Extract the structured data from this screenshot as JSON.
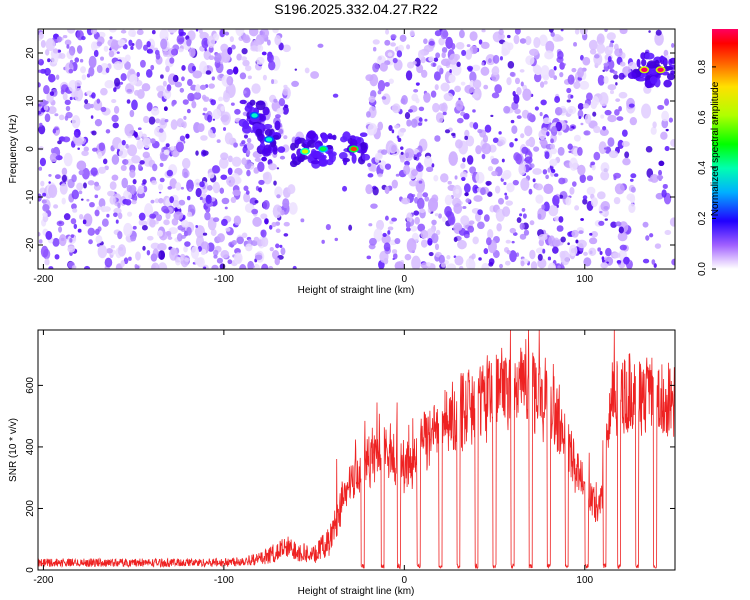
{
  "page_title": "S196.2025.332.04.27.R22",
  "chart_data": [
    {
      "type": "heatmap",
      "name": "spectrogram",
      "xlabel": "Height of straight line (km)",
      "ylabel": "Frequency (Hz)",
      "xlim": [
        -203,
        150
      ],
      "ylim": [
        -25,
        25
      ],
      "x_ticks": [
        -200,
        -100,
        0,
        100
      ],
      "y_ticks": [
        -20,
        -10,
        0,
        10,
        20
      ],
      "x_tick_labels": [
        "-200",
        "-100",
        "0",
        "100"
      ],
      "y_tick_labels": [
        "-20",
        "-10",
        "0",
        "10",
        "20"
      ],
      "colorbar": {
        "label": "Normalized spectral amplitude",
        "range": [
          0,
          0.95
        ],
        "ticks": [
          0.0,
          0.2,
          0.4,
          0.6,
          0.8
        ],
        "tick_labels": [
          "0.0",
          "0.2",
          "0.4",
          "0.6",
          "0.8"
        ]
      },
      "features": [
        {
          "x": -83,
          "y": 7,
          "amplitude": 0.35
        },
        {
          "x": -75,
          "y": 2,
          "amplitude": 0.35
        },
        {
          "x": -55,
          "y": -0.5,
          "amplitude": 0.55
        },
        {
          "x": -45,
          "y": 0,
          "amplitude": 0.4
        },
        {
          "x": -28,
          "y": 0,
          "amplitude": 0.75
        },
        {
          "x": 133,
          "y": 16.5,
          "amplitude": 0.95
        },
        {
          "x": 142,
          "y": 16.5,
          "amplitude": 0.95
        }
      ]
    },
    {
      "type": "line",
      "name": "snr",
      "xlabel": "Height of straight line (km)",
      "ylabel": "SNR (10 * v/v)",
      "xlim": [
        -203,
        150
      ],
      "ylim": [
        0,
        780
      ],
      "x_ticks": [
        -200,
        -100,
        0,
        100
      ],
      "y_ticks": [
        0,
        200,
        400,
        600
      ],
      "x_tick_labels": [
        "-200",
        "-100",
        "0",
        "100"
      ],
      "y_tick_labels": [
        "0",
        "200",
        "400",
        "600"
      ],
      "series_color": "#ee2222",
      "envelope": [
        {
          "x": -203,
          "snr": 30
        },
        {
          "x": -100,
          "snr": 30
        },
        {
          "x": -80,
          "snr": 45
        },
        {
          "x": -65,
          "snr": 90
        },
        {
          "x": -50,
          "snr": 60
        },
        {
          "x": -40,
          "snr": 130
        },
        {
          "x": -30,
          "snr": 280
        },
        {
          "x": -20,
          "snr": 360
        },
        {
          "x": -10,
          "snr": 380
        },
        {
          "x": 0,
          "snr": 320
        },
        {
          "x": 15,
          "snr": 430
        },
        {
          "x": 30,
          "snr": 500
        },
        {
          "x": 50,
          "snr": 560
        },
        {
          "x": 70,
          "snr": 600
        },
        {
          "x": 85,
          "snr": 480
        },
        {
          "x": 100,
          "snr": 270
        },
        {
          "x": 108,
          "snr": 180
        },
        {
          "x": 115,
          "snr": 560
        },
        {
          "x": 150,
          "snr": 530
        }
      ],
      "dropouts": [
        -23,
        -12,
        -3,
        8,
        20,
        30,
        40,
        50,
        60,
        70,
        80,
        90,
        101,
        111,
        119,
        129,
        139
      ]
    }
  ]
}
